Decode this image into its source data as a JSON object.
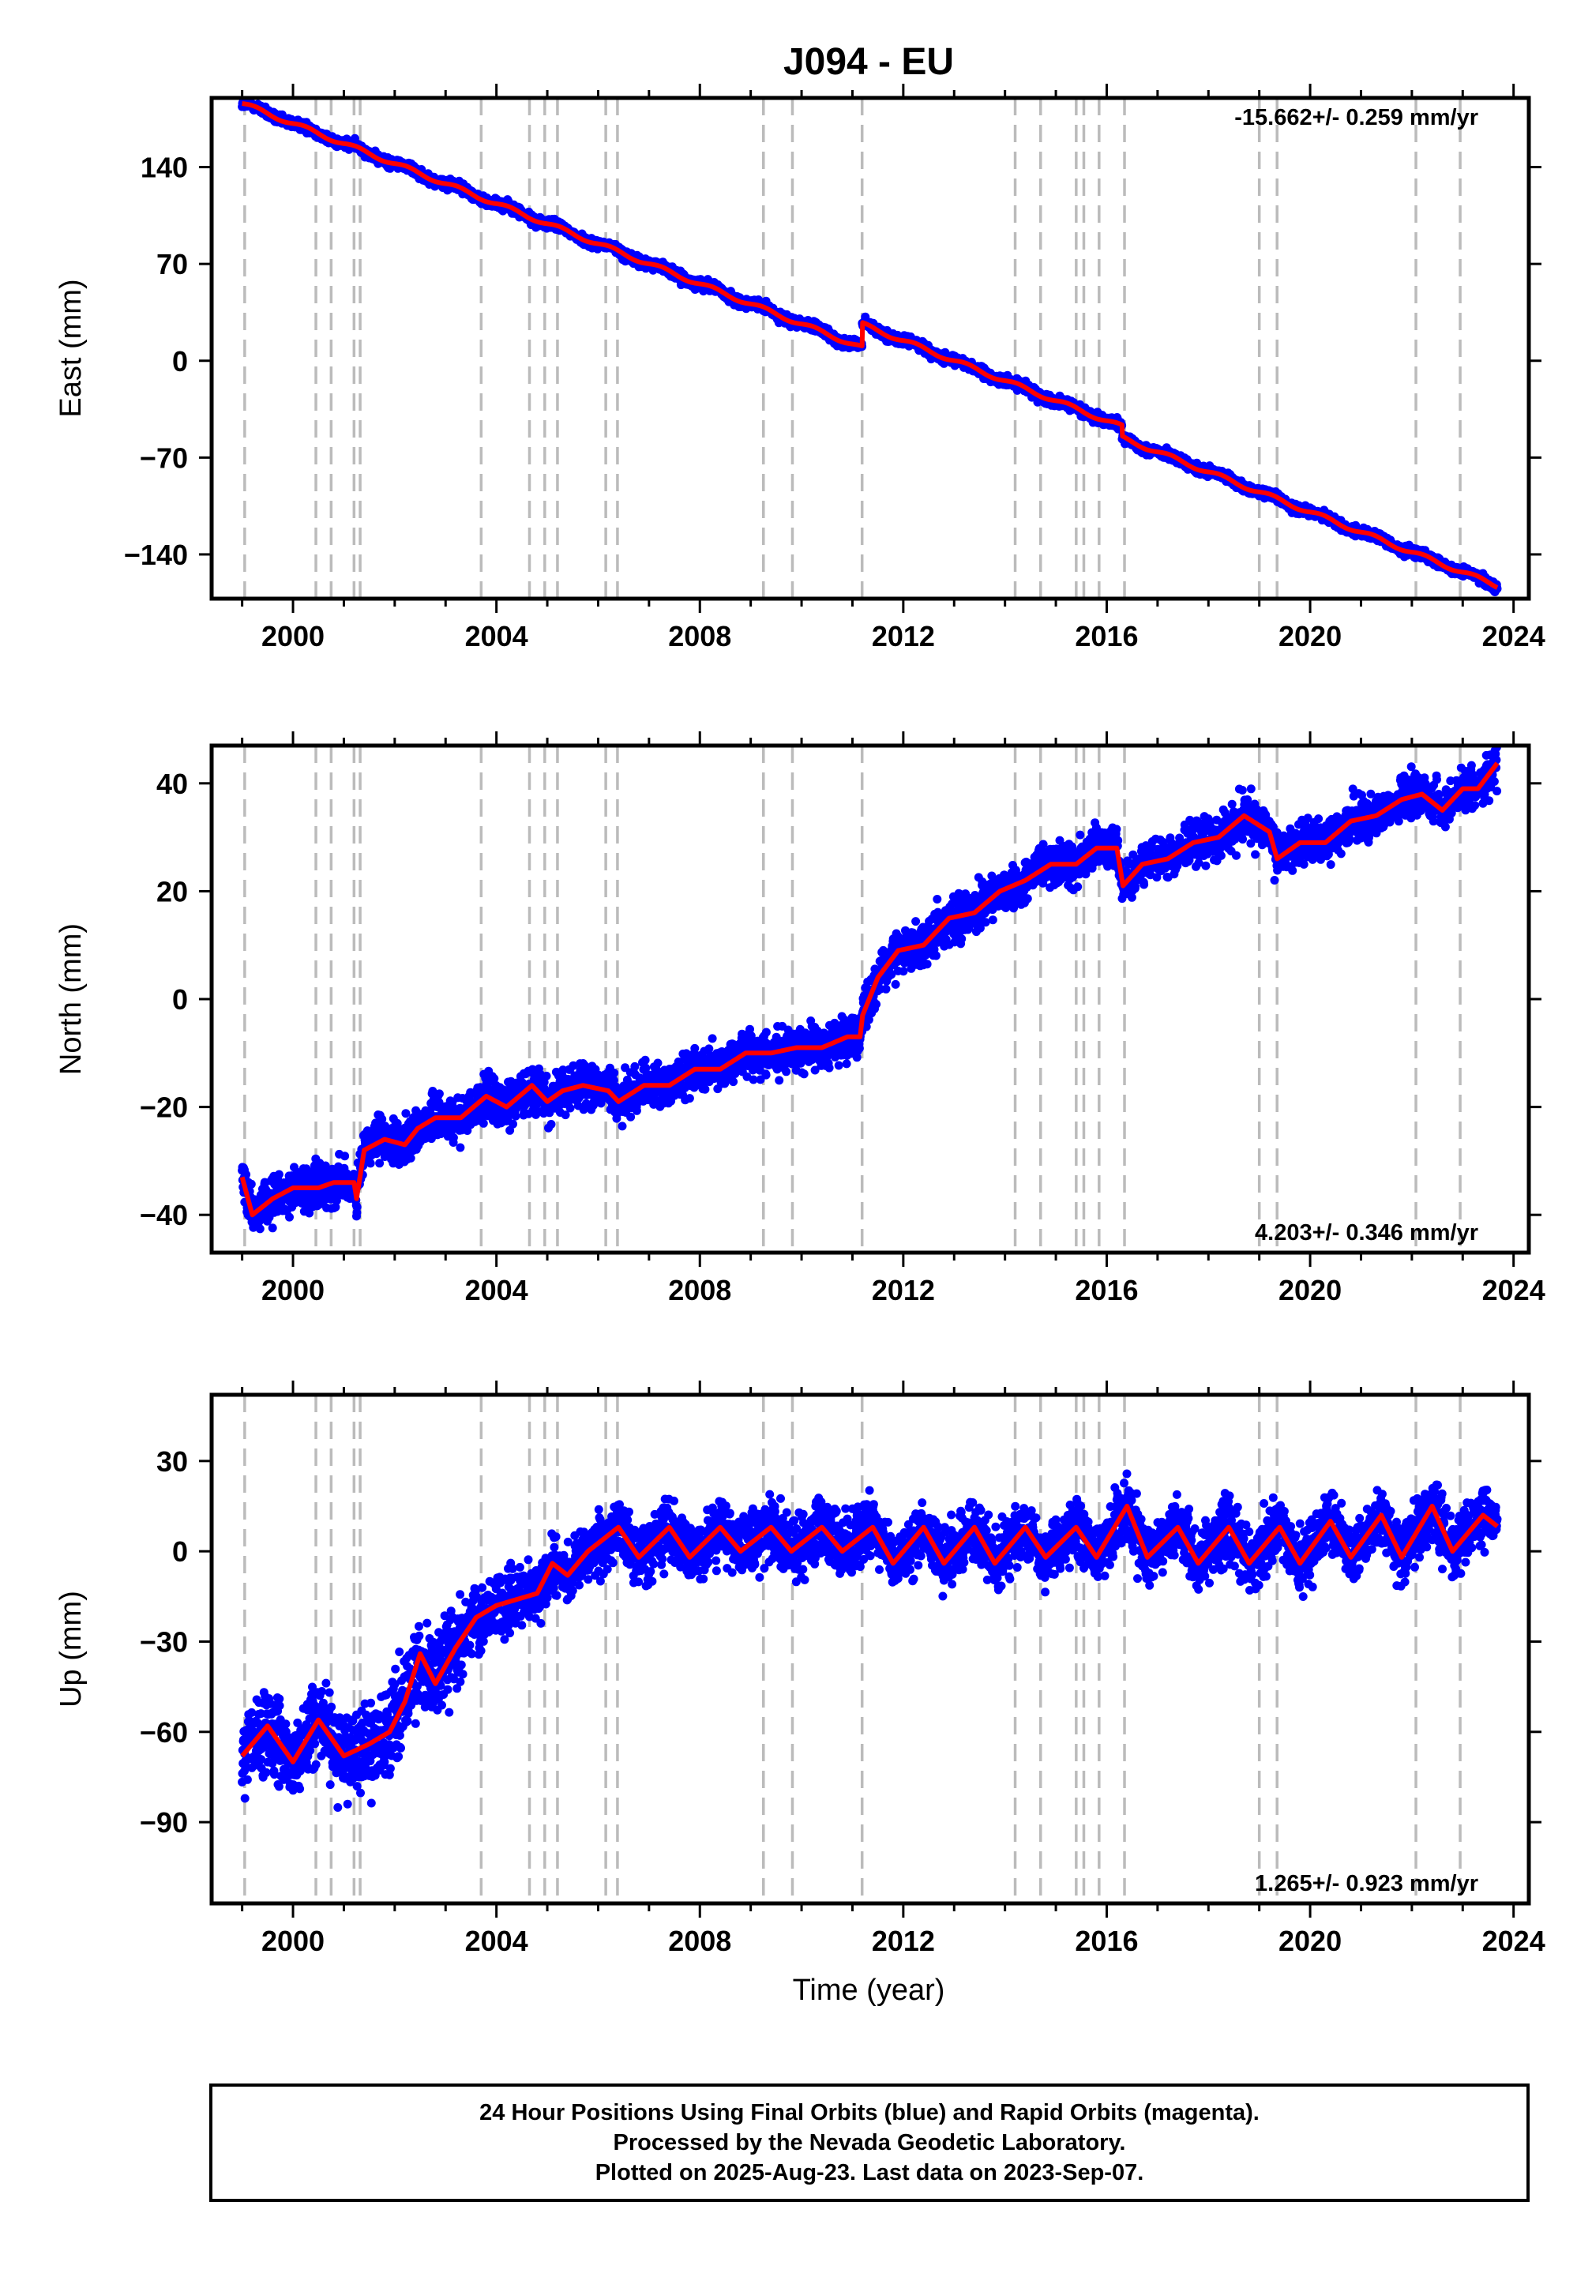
{
  "title": "J094 - EU",
  "xlabel": "Time (year)",
  "caption": [
    "24 Hour Positions Using Final Orbits (blue) and Rapid Orbits (magenta).",
    "Processed by the Nevada Geodetic Laboratory.",
    "Plotted on 2025-Aug-23. Last data on 2023-Sep-07."
  ],
  "colors": {
    "data": "#0000ff",
    "model": "#ff0000",
    "steps": "#bbbbbb"
  },
  "chart_data": [
    {
      "type": "scatter",
      "ylabel": "East (mm)",
      "rate_label": "-15.662+/- 0.259 mm/yr",
      "rate_position": "top-right",
      "xlim": [
        1998.4,
        2024.3
      ],
      "ylim": [
        -172,
        190
      ],
      "xticks": [
        2000,
        2004,
        2008,
        2012,
        2016,
        2020,
        2024
      ],
      "yticks": [
        140,
        70,
        0,
        -70,
        -140
      ],
      "ytick_labels": [
        "140",
        "70",
        "0",
        "−70",
        "−140"
      ],
      "trend": {
        "start": [
          1999.0,
          186
        ],
        "end": [
          2023.7,
          -163
        ]
      },
      "offsets": [
        {
          "x": 2011.19,
          "dy": 17
        },
        {
          "x": 2016.3,
          "dy": -8
        }
      ],
      "seasonal_amplitude": 1.5,
      "scatter_noise": 2.5,
      "series": [
        {
          "values": []
        }
      ]
    },
    {
      "type": "scatter",
      "ylabel": "North (mm)",
      "rate_label": "4.203+/- 0.346 mm/yr",
      "rate_position": "bottom-right",
      "xlim": [
        1998.4,
        2024.3
      ],
      "ylim": [
        -47,
        47
      ],
      "xticks": [
        2000,
        2004,
        2008,
        2012,
        2016,
        2020,
        2024
      ],
      "yticks": [
        40,
        20,
        0,
        -20,
        -40
      ],
      "ytick_labels": [
        "40",
        "20",
        "0",
        "−20",
        "−40"
      ],
      "model": [
        [
          1999.0,
          -33
        ],
        [
          1999.2,
          -40
        ],
        [
          1999.6,
          -37
        ],
        [
          2000.0,
          -35
        ],
        [
          2000.5,
          -35
        ],
        [
          2000.8,
          -34
        ],
        [
          2001.2,
          -34
        ],
        [
          2001.25,
          -37
        ],
        [
          2001.4,
          -28
        ],
        [
          2001.8,
          -26
        ],
        [
          2002.2,
          -27
        ],
        [
          2002.45,
          -24
        ],
        [
          2002.8,
          -22
        ],
        [
          2003.3,
          -22
        ],
        [
          2003.8,
          -18
        ],
        [
          2004.2,
          -20
        ],
        [
          2004.7,
          -16
        ],
        [
          2005.0,
          -19
        ],
        [
          2005.3,
          -17
        ],
        [
          2005.7,
          -16
        ],
        [
          2006.2,
          -17
        ],
        [
          2006.4,
          -19
        ],
        [
          2006.9,
          -16
        ],
        [
          2007.4,
          -16
        ],
        [
          2007.9,
          -13
        ],
        [
          2008.4,
          -13
        ],
        [
          2008.9,
          -10
        ],
        [
          2009.4,
          -10
        ],
        [
          2009.9,
          -9
        ],
        [
          2010.4,
          -9
        ],
        [
          2010.9,
          -7
        ],
        [
          2011.15,
          -7
        ],
        [
          2011.2,
          -3
        ],
        [
          2011.5,
          4
        ],
        [
          2011.9,
          9
        ],
        [
          2012.4,
          10
        ],
        [
          2012.9,
          15
        ],
        [
          2013.4,
          16
        ],
        [
          2013.9,
          20
        ],
        [
          2014.4,
          22
        ],
        [
          2014.9,
          25
        ],
        [
          2015.4,
          25
        ],
        [
          2015.8,
          28
        ],
        [
          2016.2,
          28
        ],
        [
          2016.32,
          21
        ],
        [
          2016.7,
          25
        ],
        [
          2017.2,
          26
        ],
        [
          2017.7,
          29
        ],
        [
          2018.2,
          30
        ],
        [
          2018.7,
          34
        ],
        [
          2019.2,
          31
        ],
        [
          2019.35,
          26
        ],
        [
          2019.8,
          29
        ],
        [
          2020.3,
          29
        ],
        [
          2020.8,
          33
        ],
        [
          2021.3,
          34
        ],
        [
          2021.8,
          37
        ],
        [
          2022.2,
          38
        ],
        [
          2022.6,
          35
        ],
        [
          2023.0,
          39
        ],
        [
          2023.3,
          39
        ],
        [
          2023.7,
          44
        ]
      ],
      "scatter_noise": 2.8,
      "series": [
        {
          "values": []
        }
      ]
    },
    {
      "type": "scatter",
      "ylabel": "Up (mm)",
      "rate_label": "1.265+/- 0.923 mm/yr",
      "rate_position": "bottom-right",
      "xlim": [
        1998.4,
        2024.3
      ],
      "ylim": [
        -117,
        52
      ],
      "xticks": [
        2000,
        2004,
        2008,
        2012,
        2016,
        2020,
        2024
      ],
      "yticks": [
        30,
        0,
        -30,
        -60,
        -90
      ],
      "ytick_labels": [
        "30",
        "0",
        "−30",
        "−60",
        "−90"
      ],
      "model": [
        [
          1999.0,
          -68
        ],
        [
          1999.5,
          -58
        ],
        [
          2000.0,
          -70
        ],
        [
          2000.5,
          -56
        ],
        [
          2001.0,
          -68
        ],
        [
          2001.5,
          -64
        ],
        [
          2001.9,
          -60
        ],
        [
          2002.2,
          -50
        ],
        [
          2002.5,
          -34
        ],
        [
          2002.8,
          -44
        ],
        [
          2003.2,
          -32
        ],
        [
          2003.6,
          -22
        ],
        [
          2004.0,
          -18
        ],
        [
          2004.4,
          -16
        ],
        [
          2004.8,
          -14
        ],
        [
          2005.1,
          -4
        ],
        [
          2005.4,
          -8
        ],
        [
          2005.8,
          0
        ],
        [
          2006.4,
          8
        ],
        [
          2006.8,
          -2
        ],
        [
          2007.4,
          8
        ],
        [
          2007.8,
          -2
        ],
        [
          2008.4,
          8
        ],
        [
          2008.8,
          0
        ],
        [
          2009.4,
          8
        ],
        [
          2009.8,
          0
        ],
        [
          2010.4,
          8
        ],
        [
          2010.8,
          0
        ],
        [
          2011.4,
          8
        ],
        [
          2011.8,
          -4
        ],
        [
          2012.4,
          8
        ],
        [
          2012.8,
          -4
        ],
        [
          2013.4,
          8
        ],
        [
          2013.8,
          -4
        ],
        [
          2014.4,
          8
        ],
        [
          2014.8,
          -2
        ],
        [
          2015.4,
          8
        ],
        [
          2015.8,
          -2
        ],
        [
          2016.4,
          15
        ],
        [
          2016.8,
          -2
        ],
        [
          2017.4,
          8
        ],
        [
          2017.8,
          -4
        ],
        [
          2018.4,
          8
        ],
        [
          2018.8,
          -4
        ],
        [
          2019.4,
          8
        ],
        [
          2019.8,
          -4
        ],
        [
          2020.4,
          10
        ],
        [
          2020.8,
          -2
        ],
        [
          2021.4,
          12
        ],
        [
          2021.8,
          -2
        ],
        [
          2022.4,
          15
        ],
        [
          2022.8,
          0
        ],
        [
          2023.4,
          12
        ],
        [
          2023.7,
          8
        ]
      ],
      "scatter_noise": 7,
      "series": [
        {
          "values": []
        }
      ]
    }
  ],
  "step_lines": [
    1999.05,
    2000.45,
    2000.75,
    2001.2,
    2001.32,
    2003.7,
    2004.65,
    2004.95,
    2005.2,
    2006.15,
    2006.38,
    2009.25,
    2009.82,
    2011.19,
    2014.2,
    2014.7,
    2015.4,
    2015.55,
    2015.85,
    2016.35,
    2019.0,
    2019.35,
    2022.08,
    2022.95
  ]
}
